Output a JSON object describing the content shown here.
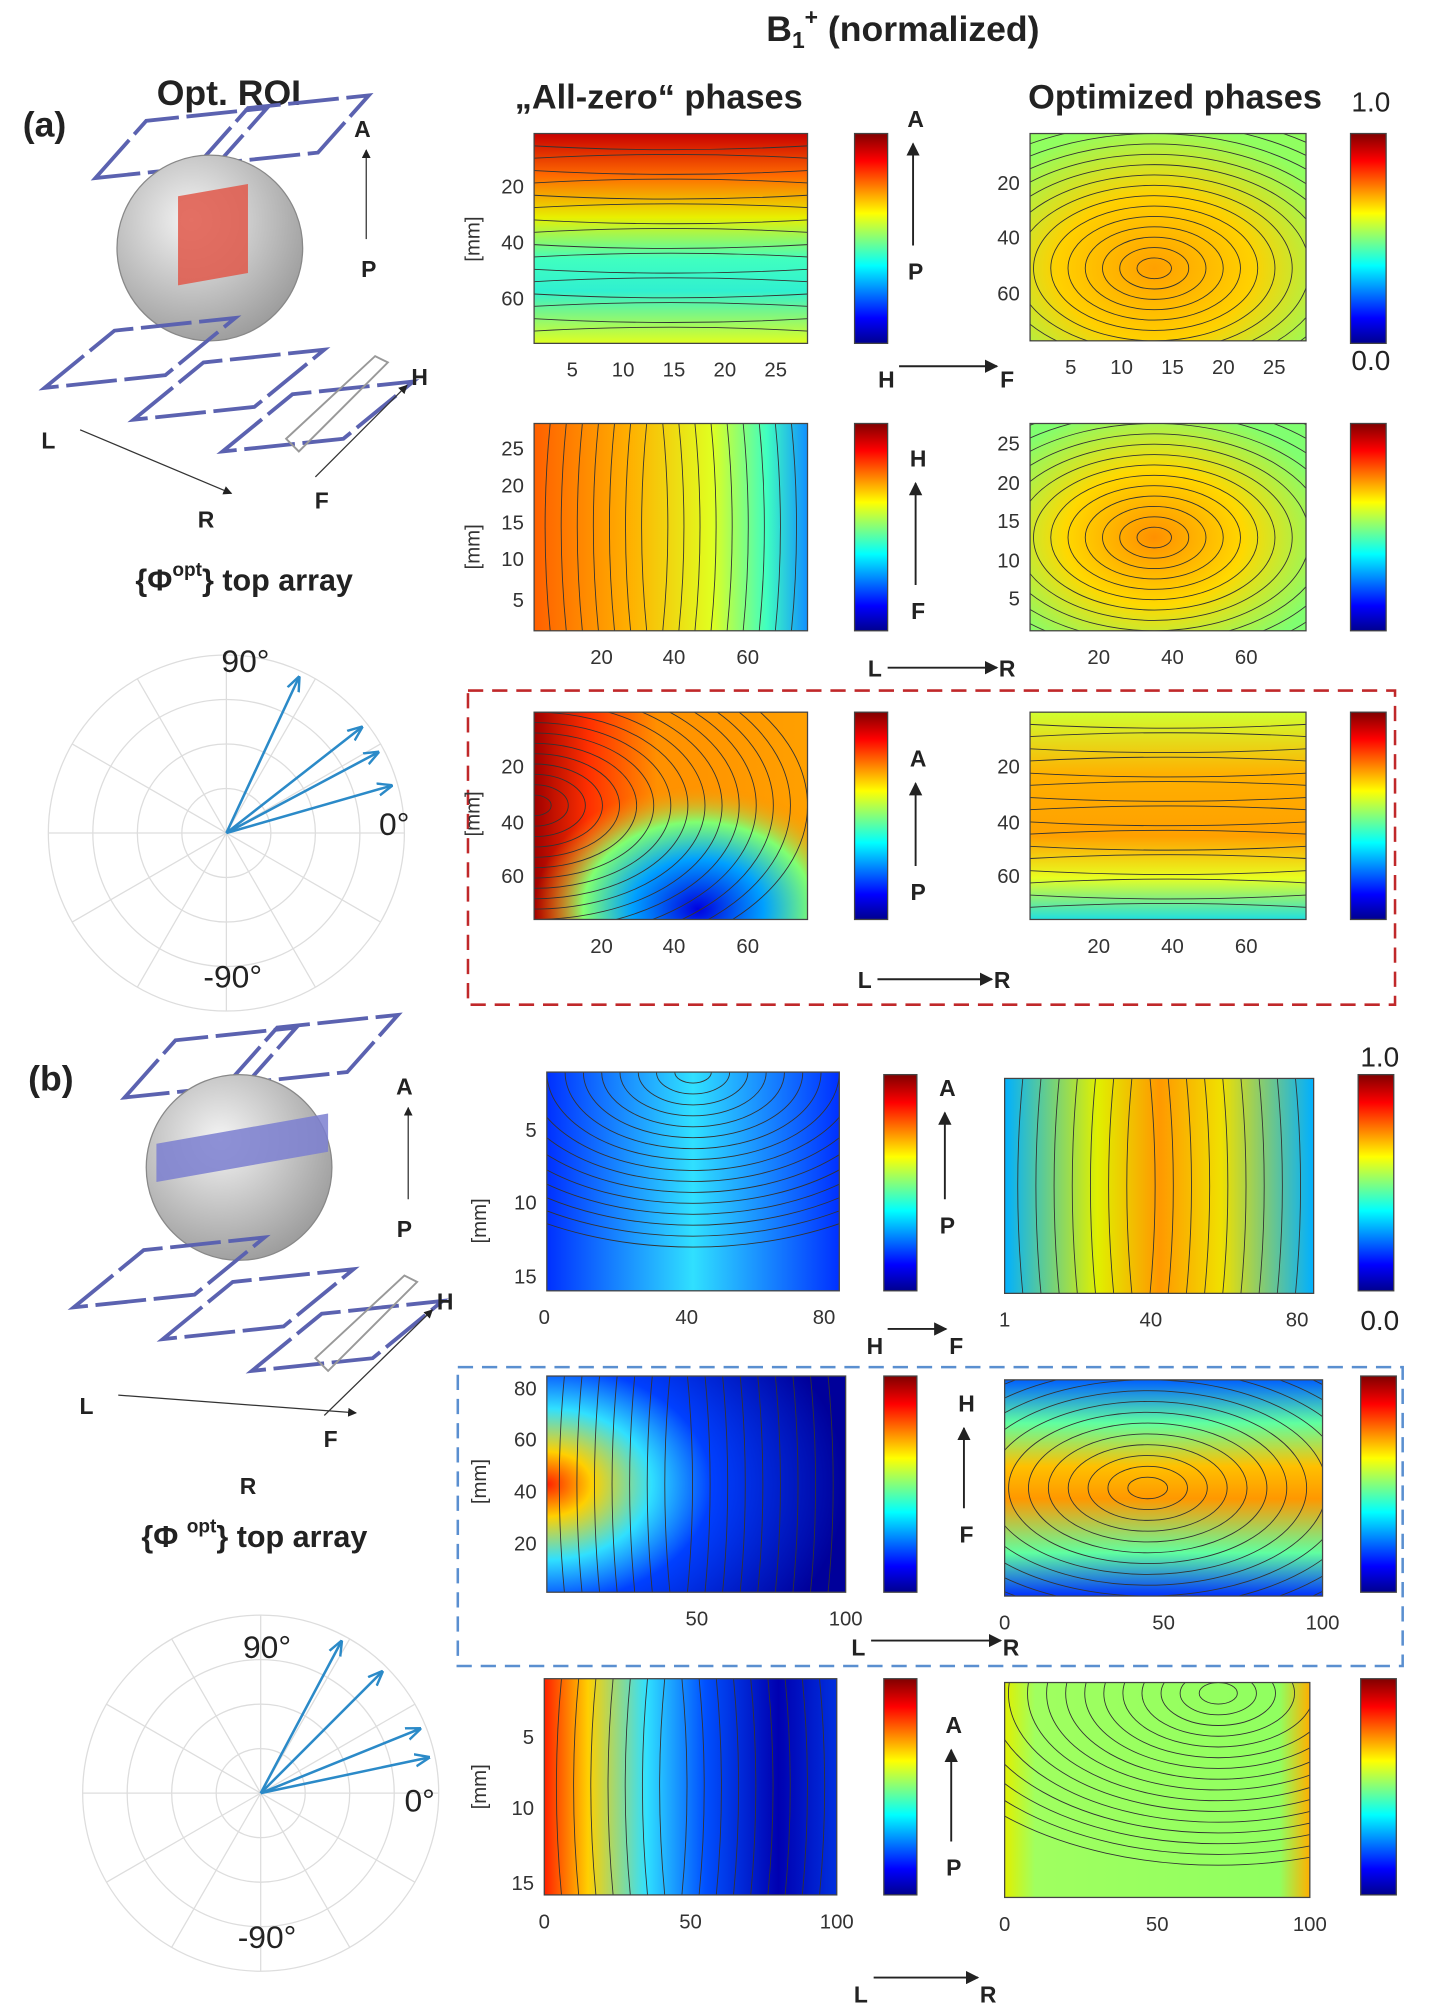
{
  "header": {
    "symbol": "B",
    "sub": "1",
    "sup": "+",
    "rest": " (normalized)"
  },
  "columns": [
    "„All-zero“ phases",
    "Optimized phases"
  ],
  "panels": [
    {
      "label": "(a)",
      "roi_title": "Opt. ROI",
      "orientation": [
        "A",
        "P",
        "H",
        "L",
        "R",
        "F"
      ],
      "phase_title": {
        "pre": "{Φ",
        "sup": "opt",
        "post": "} top array"
      },
      "polar": [
        "90°",
        "0°",
        "-90°"
      ],
      "colorbar": [
        "1.0",
        "0.0"
      ],
      "rows": [
        {
          "ylabel": "[mm]",
          "left": {
            "yticks": [
              20,
              40,
              60
            ],
            "xticks": [
              5,
              10,
              15,
              20,
              25
            ]
          },
          "right": {
            "yticks": [
              20,
              40,
              60
            ],
            "xticks": [
              5,
              10,
              15,
              20,
              25
            ]
          },
          "vertical": [
            "A",
            "P"
          ],
          "horizontal": [
            "H",
            "F"
          ]
        },
        {
          "ylabel": "[mm]",
          "left": {
            "yticks": [
              25,
              20,
              15,
              10,
              5
            ],
            "xticks": [
              20,
              40,
              60
            ]
          },
          "right": {
            "yticks": [
              25,
              20,
              15,
              10,
              5
            ],
            "xticks": [
              20,
              40,
              60
            ]
          },
          "vertical": [
            "H",
            "F"
          ],
          "horizontal": [
            "L",
            "R"
          ]
        },
        {
          "ylabel": "[mm]",
          "left": {
            "yticks": [
              20,
              40,
              60
            ],
            "xticks": [
              20,
              40,
              60
            ]
          },
          "right": {
            "yticks": [
              20,
              40,
              60
            ],
            "xticks": [
              20,
              40,
              60
            ]
          },
          "vertical": [
            "A",
            "P"
          ],
          "horizontal": [
            "L",
            "R"
          ]
        }
      ]
    },
    {
      "label": "(b)",
      "roi_title": null,
      "orientation": [
        "A",
        "P",
        "H",
        "L",
        "F",
        "R"
      ],
      "phase_title": {
        "pre": "{Φ ",
        "sup": "opt",
        "post": "} top array"
      },
      "polar": [
        "90°",
        "0°",
        "-90°"
      ],
      "colorbar": [
        "1.0",
        "0.0"
      ],
      "rows": [
        {
          "ylabel": "[mm]",
          "left": {
            "yticks": [
              5,
              10,
              15
            ],
            "xticks": [
              0,
              40,
              80
            ]
          },
          "right": {
            "yticks": [],
            "xticks": [
              1,
              40,
              80
            ]
          },
          "vertical": [
            "A",
            "P"
          ],
          "horizontal": [
            "H",
            "F"
          ]
        },
        {
          "ylabel": "[mm]",
          "left": {
            "yticks": [
              80,
              60,
              40,
              20
            ],
            "xticks": [
              50,
              100
            ]
          },
          "right": {
            "yticks": [],
            "xticks": [
              0,
              50,
              100
            ]
          },
          "vertical": [
            "H",
            "F"
          ],
          "horizontal": [
            "L",
            "R"
          ]
        },
        {
          "ylabel": "[mm]",
          "left": {
            "yticks": [
              5,
              10,
              15
            ],
            "xticks": [
              0,
              50,
              100
            ]
          },
          "right": {
            "yticks": [],
            "xticks": [
              0,
              50,
              100
            ]
          },
          "vertical": [
            "A",
            "P"
          ],
          "horizontal": [
            "L",
            "R"
          ]
        }
      ]
    }
  ]
}
